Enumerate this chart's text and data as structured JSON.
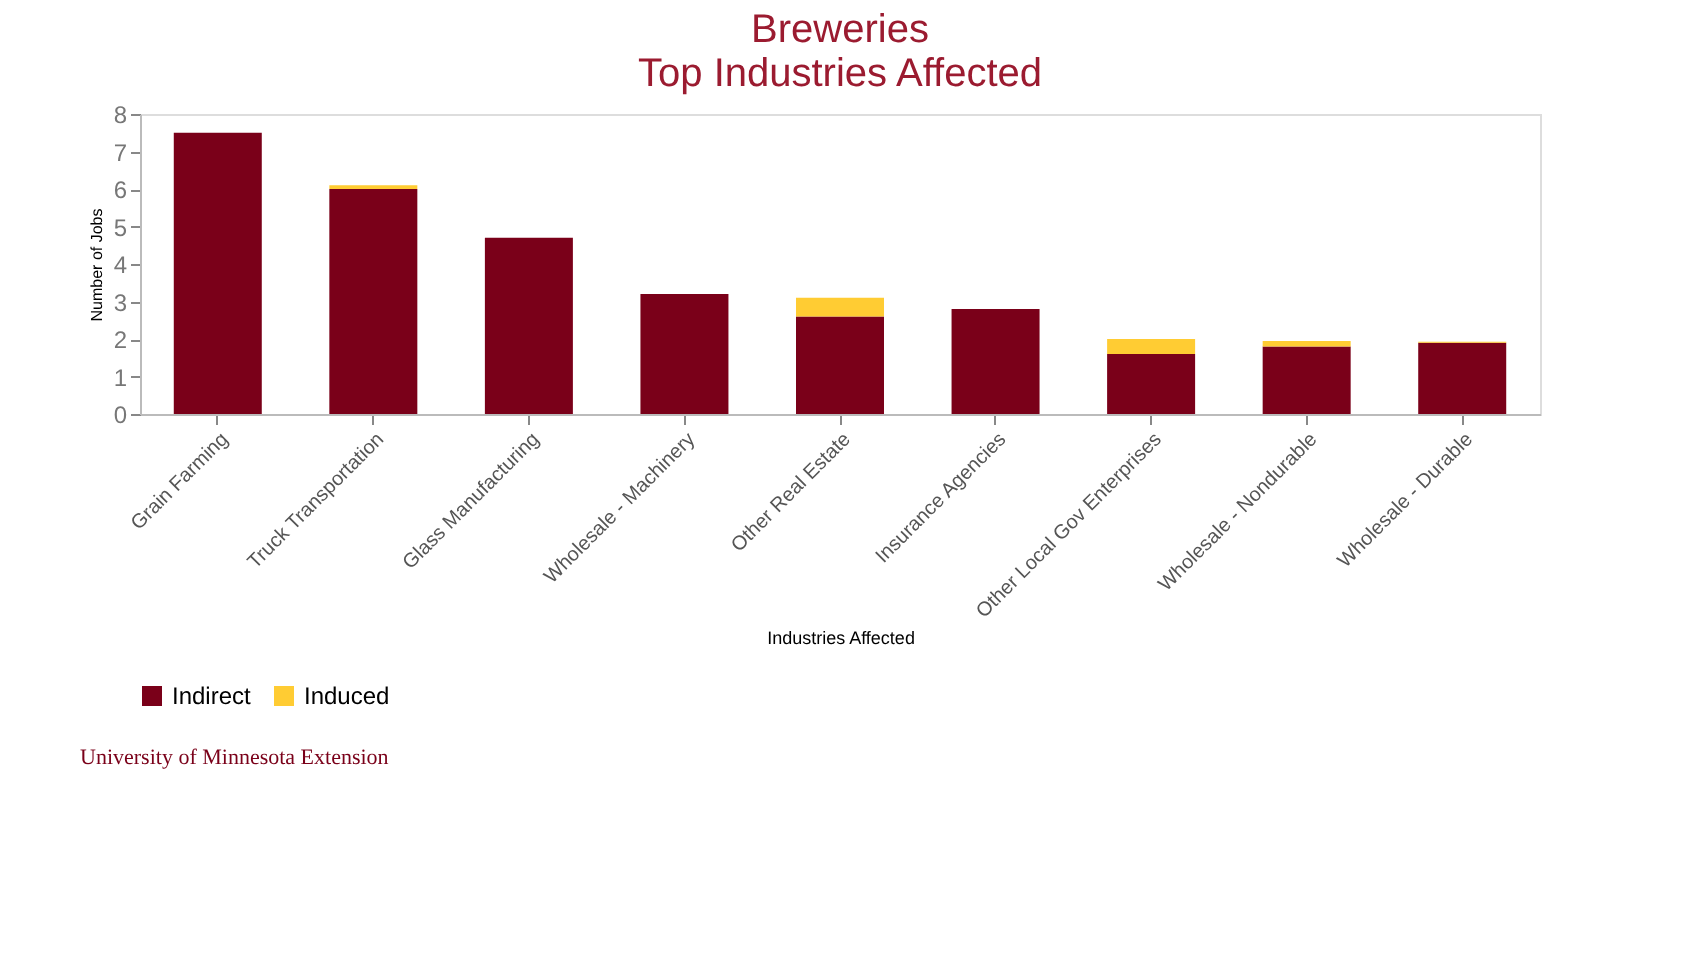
{
  "chart_data": {
    "type": "bar",
    "title": [
      "Breweries",
      "Top Industries Affected"
    ],
    "categories": [
      "Grain Farming",
      "Truck Transportation",
      "Glass Manufacturing",
      "Wholesale - Machinery",
      "Other Real Estate",
      "Insurance Agencies",
      "Other Local Gov Enterprises",
      "Wholesale - Nondurable",
      "Wholesale - Durable"
    ],
    "series": [
      {
        "name": "Indirect",
        "color": "#7a0019",
        "values": [
          7.5,
          6.0,
          4.7,
          3.2,
          2.6,
          2.8,
          1.6,
          1.8,
          1.9
        ]
      },
      {
        "name": "Induced",
        "color": "#ffcc33",
        "values": [
          0.0,
          0.1,
          0.0,
          0.0,
          0.5,
          0.0,
          0.4,
          0.15,
          0.03
        ]
      }
    ],
    "stacked": true,
    "xlabel": "Industries Affected",
    "ylabel": "Number of Jobs",
    "ylim": [
      0,
      8
    ],
    "yticks": [
      0,
      1,
      2,
      3,
      4,
      5,
      6,
      7,
      8
    ],
    "grid": false,
    "legend": "bottom",
    "annotations": [
      "University of Minnesota Extension"
    ]
  }
}
